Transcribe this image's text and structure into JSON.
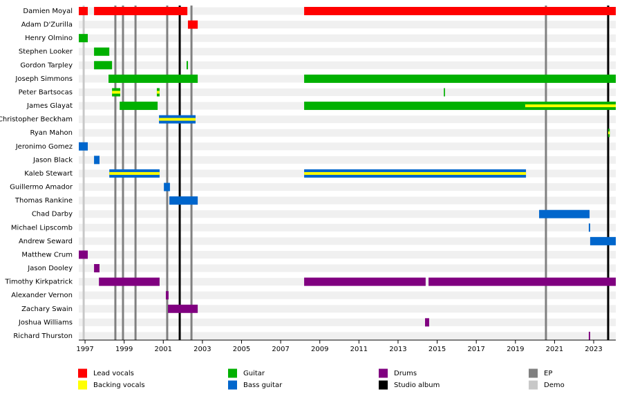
{
  "chart_data": {
    "type": "timeline",
    "xlim": [
      1996.68,
      2024.13
    ],
    "xticks": [
      1997,
      1999,
      2001,
      2003,
      2005,
      2007,
      2009,
      2011,
      2013,
      2015,
      2017,
      2019,
      2021,
      2023
    ],
    "series": [
      {
        "name": "Lead vocals",
        "color": "#ff0000"
      },
      {
        "name": "Backing vocals",
        "color": "#ffff00"
      },
      {
        "name": "Guitar",
        "color": "#00b000"
      },
      {
        "name": "Bass guitar",
        "color": "#0066cc"
      },
      {
        "name": "Drums",
        "color": "#800080"
      },
      {
        "name": "Studio album",
        "color": "#000000"
      },
      {
        "name": "EP",
        "color": "#808080"
      },
      {
        "name": "Demo",
        "color": "#c8c8c8"
      }
    ],
    "events": [
      {
        "series": 7,
        "x": 1996.93
      },
      {
        "series": 6,
        "x": 1998.55
      },
      {
        "series": 6,
        "x": 1998.94
      },
      {
        "series": 6,
        "x": 1999.58
      },
      {
        "series": 6,
        "x": 2001.2
      },
      {
        "series": 6,
        "x": 2002.44
      },
      {
        "series": 6,
        "x": 2020.56
      },
      {
        "series": 5,
        "x": 2001.84
      },
      {
        "series": 5,
        "x": 2023.74
      }
    ],
    "members": [
      {
        "name": "Damien Moyal",
        "spans": [
          {
            "role": 0,
            "start": 1996.68,
            "end": 1997.14
          },
          {
            "role": 0,
            "start": 1997.46,
            "end": 2002.23
          },
          {
            "role": 0,
            "start": 2008.2,
            "end": 2024.13
          }
        ]
      },
      {
        "name": "Adam D'Zurilla",
        "spans": [
          {
            "role": 0,
            "start": 2002.26,
            "end": 2002.76
          }
        ]
      },
      {
        "name": "Henry Olmino",
        "spans": [
          {
            "role": 2,
            "start": 1996.68,
            "end": 1997.14
          }
        ]
      },
      {
        "name": "Stephen Looker",
        "spans": [
          {
            "role": 2,
            "start": 1997.46,
            "end": 1998.24
          }
        ]
      },
      {
        "name": "Gordon Tarpley",
        "spans": [
          {
            "role": 2,
            "start": 1997.46,
            "end": 1998.38
          },
          {
            "role": 2,
            "start": 2002.19,
            "end": 2002.26
          }
        ]
      },
      {
        "name": "Joseph Simmons",
        "spans": [
          {
            "role": 2,
            "start": 1998.2,
            "end": 2002.76
          },
          {
            "role": 2,
            "start": 2008.2,
            "end": 2024.13
          }
        ]
      },
      {
        "name": "Peter Bartsocas",
        "spans": [
          {
            "role": 2,
            "with": 1,
            "start": 1998.38,
            "end": 1998.8
          },
          {
            "role": 2,
            "with": 1,
            "start": 2000.67,
            "end": 2000.81
          },
          {
            "role": 2,
            "start": 2015.34,
            "end": 2015.4
          }
        ]
      },
      {
        "name": "James Glayat",
        "spans": [
          {
            "role": 2,
            "start": 1998.77,
            "end": 2000.71
          },
          {
            "role": 2,
            "start": 2008.2,
            "end": 2019.5
          },
          {
            "role": 2,
            "with": 1,
            "start": 2019.5,
            "end": 2024.13
          }
        ]
      },
      {
        "name": "Christopher Beckham",
        "spans": [
          {
            "role": 3,
            "with": 1,
            "start": 2000.78,
            "end": 2002.65
          }
        ]
      },
      {
        "name": "Ryan Mahon",
        "spans": [
          {
            "role": 2,
            "with": 1,
            "start": 2023.74,
            "end": 2023.82
          }
        ]
      },
      {
        "name": "Jeronimo Gomez",
        "spans": [
          {
            "role": 3,
            "start": 1996.68,
            "end": 1997.14
          }
        ]
      },
      {
        "name": "Jason Black",
        "spans": [
          {
            "role": 3,
            "start": 1997.46,
            "end": 1997.74
          }
        ]
      },
      {
        "name": "Kaleb Stewart",
        "spans": [
          {
            "role": 3,
            "with": 1,
            "start": 1998.24,
            "end": 2000.81
          },
          {
            "role": 3,
            "with": 1,
            "start": 2008.2,
            "end": 2019.54
          }
        ]
      },
      {
        "name": "Guillermo Amador",
        "spans": [
          {
            "role": 3,
            "start": 2001.03,
            "end": 2001.34
          }
        ]
      },
      {
        "name": "Thomas Rankine",
        "spans": [
          {
            "role": 3,
            "start": 2001.31,
            "end": 2002.76
          }
        ]
      },
      {
        "name": "Chad Darby",
        "spans": [
          {
            "role": 3,
            "start": 2020.21,
            "end": 2022.79
          }
        ]
      },
      {
        "name": "Michael Lipscomb",
        "spans": [
          {
            "role": 3,
            "start": 2022.75,
            "end": 2022.82
          }
        ]
      },
      {
        "name": "Andrew Seward",
        "spans": [
          {
            "role": 3,
            "start": 2022.82,
            "end": 2024.13
          }
        ]
      },
      {
        "name": "Matthew Crum",
        "spans": [
          {
            "role": 4,
            "start": 1996.68,
            "end": 1997.14
          }
        ]
      },
      {
        "name": "Jason Dooley",
        "spans": [
          {
            "role": 4,
            "start": 1997.46,
            "end": 1997.74
          }
        ]
      },
      {
        "name": "Timothy Kirkpatrick",
        "spans": [
          {
            "role": 4,
            "start": 1997.71,
            "end": 2000.81
          },
          {
            "role": 4,
            "start": 2008.2,
            "end": 2014.41
          },
          {
            "role": 4,
            "start": 2014.56,
            "end": 2024.13
          }
        ]
      },
      {
        "name": "Alexander Vernon",
        "spans": [
          {
            "role": 4,
            "start": 2001.13,
            "end": 2001.27
          }
        ]
      },
      {
        "name": "Zachary Swain",
        "spans": [
          {
            "role": 4,
            "start": 2001.24,
            "end": 2002.76
          }
        ]
      },
      {
        "name": "Joshua Williams",
        "spans": [
          {
            "role": 4,
            "start": 2014.38,
            "end": 2014.59
          }
        ]
      },
      {
        "name": "Richard Thurston",
        "spans": [
          {
            "role": 4,
            "start": 2022.75,
            "end": 2022.82
          }
        ]
      }
    ]
  }
}
